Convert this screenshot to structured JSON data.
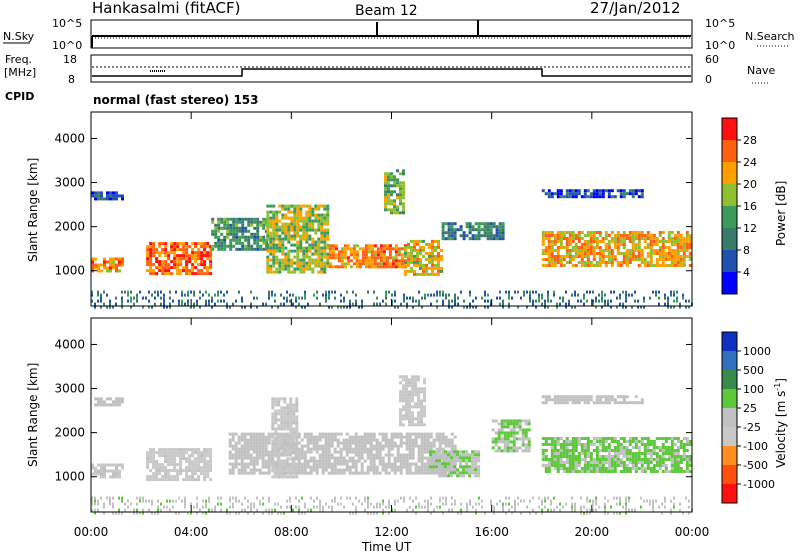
{
  "header": {
    "station": "Hankasalmi (fitACF)",
    "beam": "Beam 12",
    "date": "27/Jan/2012"
  },
  "top_panel": {
    "nsky_label": "N.Sky",
    "nsearch_label": "N.Search",
    "log_ticks": [
      "10^5",
      "10^0"
    ],
    "freq_label_1": "Freq.",
    "freq_label_2": "[MHz]",
    "freq_ticks": [
      "18",
      "8"
    ],
    "nave_label": "Nave",
    "nave_ticks": [
      "60",
      "0"
    ],
    "cpid_label": "CPID",
    "cpid_text": "normal (fast stereo) 153"
  },
  "x_axis": {
    "label": "Time UT",
    "ticks": [
      "00:00",
      "04:00",
      "08:00",
      "12:00",
      "16:00",
      "20:00",
      "00:00"
    ]
  },
  "panels": {
    "power": {
      "ylabel": "Slant Range [km]",
      "yticks": [
        "4000",
        "3000",
        "2000",
        "1000"
      ],
      "colorbar_label": "Power [dB]",
      "colorbar_ticks": [
        "28",
        "24",
        "20",
        "16",
        "12",
        "8",
        "4"
      ]
    },
    "velocity": {
      "ylabel": "Slant Range [km]",
      "yticks": [
        "4000",
        "3000",
        "2000",
        "1000"
      ],
      "colorbar_label": "Velocity [m s",
      "colorbar_label_sup": "-1",
      "colorbar_label_end": "]",
      "colorbar_ticks": [
        "1000",
        "500",
        "100",
        "25",
        "-25",
        "-100",
        "-500",
        "-1000"
      ]
    }
  },
  "colors": {
    "power_scale": [
      "#0000ff",
      "#2050b0",
      "#3a7a6a",
      "#3c9a5a",
      "#90c030",
      "#ffa000",
      "#ff6010",
      "#ff1010"
    ],
    "velocity_scale": [
      "#1030c0",
      "#3070c0",
      "#3a8a4a",
      "#5cc83a",
      "#c0c0c0",
      "#c8c8c8",
      "#ff9020",
      "#ff5010",
      "#ff1010"
    ]
  },
  "chart_data": [
    {
      "type": "heatmap",
      "title": "Beam 12",
      "xlabel": "Time UT",
      "ylabel": "Slant Range [km]",
      "xlim": [
        0,
        24
      ],
      "ylim": [
        200,
        4600
      ],
      "colorbar": {
        "label": "Power [dB]",
        "range": [
          0,
          32
        ]
      },
      "regions": [
        {
          "t": [
            0.0,
            1.2
          ],
          "range": [
            1000,
            1300
          ],
          "value": 24
        },
        {
          "t": [
            0.0,
            1.3
          ],
          "range": [
            2650,
            2800
          ],
          "value": 6
        },
        {
          "t": [
            2.2,
            4.8
          ],
          "range": [
            950,
            1650
          ],
          "value": 26
        },
        {
          "t": [
            4.8,
            7.0
          ],
          "range": [
            1500,
            2200
          ],
          "value": 12
        },
        {
          "t": [
            7.0,
            9.5
          ],
          "range": [
            950,
            2500
          ],
          "value": 18
        },
        {
          "t": [
            9.5,
            12.5
          ],
          "range": [
            1100,
            1600
          ],
          "value": 24
        },
        {
          "t": [
            12.5,
            14.0
          ],
          "range": [
            900,
            1700
          ],
          "value": 20
        },
        {
          "t": [
            11.7,
            12.5
          ],
          "range": [
            2300,
            3300
          ],
          "value": 16
        },
        {
          "t": [
            14.0,
            16.5
          ],
          "range": [
            1700,
            2100
          ],
          "value": 10
        },
        {
          "t": [
            18.0,
            23.9
          ],
          "range": [
            1100,
            1900
          ],
          "value": 22
        },
        {
          "t": [
            18.0,
            22.0
          ],
          "range": [
            2700,
            2850
          ],
          "value": 6
        }
      ]
    },
    {
      "type": "heatmap",
      "title": "Beam 12",
      "xlabel": "Time UT",
      "ylabel": "Slant Range [km]",
      "xlim": [
        0,
        24
      ],
      "ylim": [
        200,
        4600
      ],
      "colorbar": {
        "label": "Velocity [m s^-1]",
        "range": [
          -1000,
          1000
        ]
      },
      "regions": [
        {
          "t": [
            0.0,
            1.2
          ],
          "range": [
            1000,
            1300
          ],
          "value": -150
        },
        {
          "t": [
            0.0,
            1.3
          ],
          "range": [
            2650,
            2800
          ],
          "value": 0
        },
        {
          "t": [
            2.2,
            4.8
          ],
          "range": [
            950,
            1650
          ],
          "value": -200
        },
        {
          "t": [
            5.5,
            14.5
          ],
          "range": [
            1100,
            2000
          ],
          "value": 0
        },
        {
          "t": [
            7.2,
            8.2
          ],
          "range": [
            1000,
            2800
          ],
          "value": -150
        },
        {
          "t": [
            12.3,
            13.3
          ],
          "range": [
            2200,
            3300
          ],
          "value": -200
        },
        {
          "t": [
            13.5,
            15.5
          ],
          "range": [
            1000,
            1600
          ],
          "value": 80
        },
        {
          "t": [
            16.0,
            17.5
          ],
          "range": [
            1600,
            2300
          ],
          "value": 120
        },
        {
          "t": [
            18.0,
            23.9
          ],
          "range": [
            1100,
            1900
          ],
          "value": 150
        },
        {
          "t": [
            18.0,
            22.0
          ],
          "range": [
            2700,
            2850
          ],
          "value": 0
        }
      ]
    }
  ]
}
